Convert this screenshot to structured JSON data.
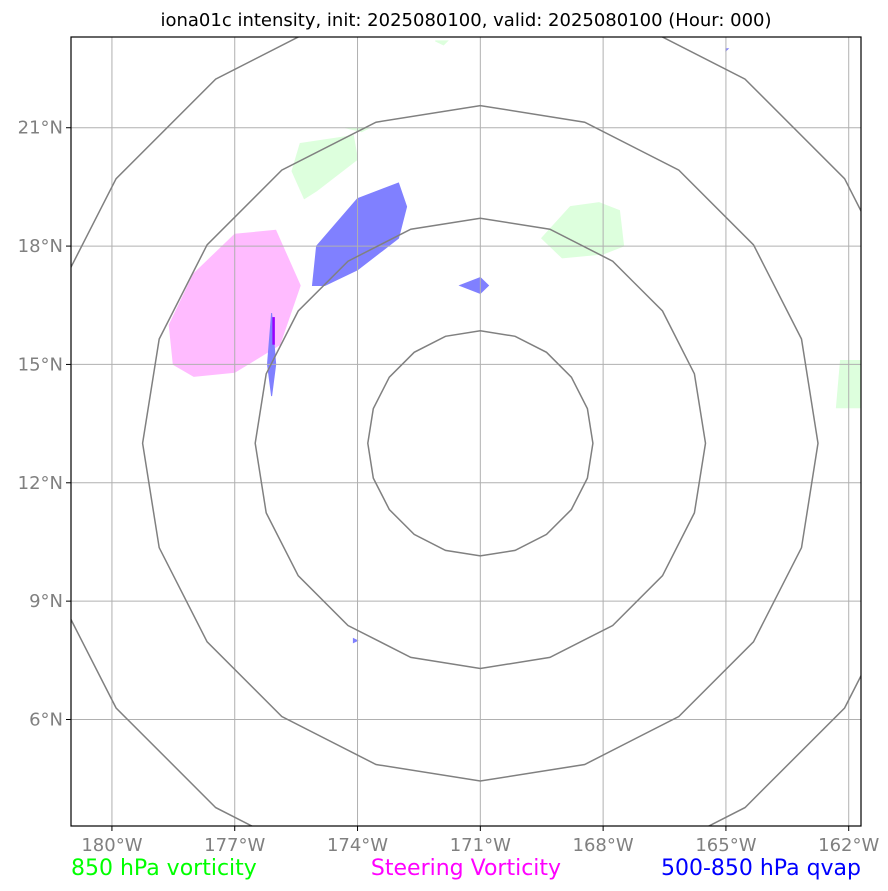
{
  "title": "iona01c intensity, init: 2025080100, valid: 2025080100 (Hour: 000)",
  "map": {
    "lon_range": [
      -181,
      -161.7
    ],
    "lat_range": [
      3.3,
      23.3
    ],
    "lon_ticks": [
      {
        "value": -180,
        "label": "180°W"
      },
      {
        "value": -177,
        "label": "177°W"
      },
      {
        "value": -174,
        "label": "174°W"
      },
      {
        "value": -171,
        "label": "171°W"
      },
      {
        "value": -168,
        "label": "168°W"
      },
      {
        "value": -165,
        "label": "165°W"
      },
      {
        "value": -162,
        "label": "162°W"
      }
    ],
    "lat_ticks": [
      {
        "value": 21,
        "label": "21°N"
      },
      {
        "value": 18,
        "label": "18°N"
      },
      {
        "value": 15,
        "label": "15°N"
      },
      {
        "value": 12,
        "label": "12°N"
      },
      {
        "value": 9,
        "label": "9°N"
      },
      {
        "value": 6,
        "label": "6°N"
      }
    ],
    "grid": true,
    "range_rings": {
      "center": [
        -171.0,
        13.0
      ],
      "radii_deg": [
        2.75,
        5.5,
        8.25,
        11.0
      ],
      "color": "#808080"
    },
    "layers": {
      "vort850": {
        "color": "#ddffdd",
        "polygons": [
          [
            [
              -175.4,
              20.6
            ],
            [
              -174.1,
              20.8
            ],
            [
              -174.0,
              20.2
            ],
            [
              -175.0,
              19.4
            ],
            [
              -175.3,
              19.2
            ],
            [
              -175.6,
              19.9
            ]
          ],
          [
            [
              -169.5,
              18.2
            ],
            [
              -168.8,
              19.0
            ],
            [
              -168.1,
              19.1
            ],
            [
              -167.6,
              18.9
            ],
            [
              -167.5,
              18.0
            ],
            [
              -168.0,
              17.8
            ],
            [
              -169.0,
              17.7
            ]
          ],
          [
            [
              -161.7,
              15.1
            ],
            [
              -162.2,
              15.1
            ],
            [
              -162.3,
              13.9
            ],
            [
              -161.7,
              13.9
            ]
          ],
          [
            [
              -174.3,
              21.0
            ],
            [
              -173.7,
              21.0
            ],
            [
              -173.9,
              20.9
            ]
          ],
          [
            [
              -172.1,
              23.2
            ],
            [
              -171.8,
              23.2
            ],
            [
              -171.9,
              23.1
            ]
          ]
        ]
      },
      "steering": {
        "color": "#ffbbff",
        "polygons": [
          [
            [
              -177.0,
              18.3
            ],
            [
              -176.0,
              18.4
            ],
            [
              -175.4,
              17.0
            ],
            [
              -175.9,
              15.5
            ],
            [
              -177.0,
              14.8
            ],
            [
              -178.0,
              14.7
            ],
            [
              -178.5,
              15.0
            ],
            [
              -178.6,
              16.0
            ],
            [
              -178.0,
              17.3
            ]
          ]
        ]
      },
      "qvap": {
        "color": "#8080ff",
        "polygons": [
          [
            [
              -175.0,
              18.0
            ],
            [
              -174.0,
              19.2
            ],
            [
              -173.0,
              19.6
            ],
            [
              -172.8,
              19.0
            ],
            [
              -173.0,
              18.2
            ],
            [
              -174.0,
              17.4
            ],
            [
              -174.8,
              17.0
            ],
            [
              -175.1,
              17.0
            ]
          ],
          [
            [
              -171.5,
              17.0
            ],
            [
              -171.0,
              17.2
            ],
            [
              -170.8,
              17.0
            ],
            [
              -171.0,
              16.8
            ]
          ],
          [
            [
              -176.1,
              16.3
            ],
            [
              -176.0,
              15.0
            ],
            [
              -176.1,
              14.2
            ],
            [
              -176.2,
              15.0
            ]
          ],
          [
            [
              -174.1,
              8.05
            ],
            [
              -174.0,
              8.0
            ],
            [
              -174.1,
              7.95
            ]
          ],
          [
            [
              -165.0,
              23.0
            ],
            [
              -164.95,
              23.0
            ],
            [
              -165.0,
              22.95
            ]
          ]
        ]
      },
      "overlap_line": {
        "color": "#9900ff",
        "points": [
          [
            -176.05,
            16.2
          ],
          [
            -176.05,
            15.5
          ]
        ]
      }
    }
  },
  "legend": [
    {
      "label": "850 hPa vorticity",
      "color": "#00ff00"
    },
    {
      "label": "Steering Vorticity",
      "color": "#ff00ff"
    },
    {
      "label": "500-850 hPa qvap",
      "color": "#0000ff"
    }
  ]
}
